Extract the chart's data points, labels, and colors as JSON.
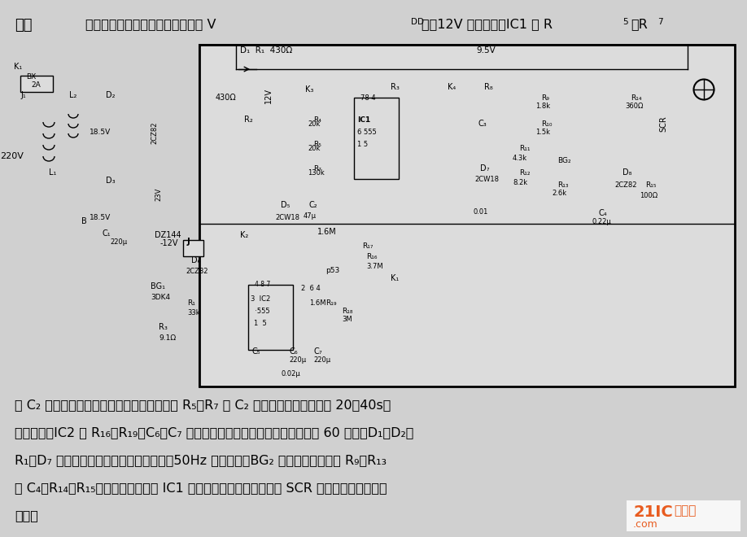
{
  "bg_color": "#e8e8e8",
  "page_bg": "#d4d4d4",
  "title_line": "如图        所示，降压整流电路为控制器提供 V₀₀＝＋12V 工作电压。IC1 和 R₅～R₇",
  "bottom_text_lines": [
    "及 C₂ 构成无稳态多谐振荡器，其振荡周期由 R₅～R₇ 和 C₂ 决定，按图示参数约为 20～40s，",
    "换档可调。IC2 和 R₁₆～R₁₉、C₆、C₇ 等组成开机延时电路，最大延时时间达 60 分钟。D₁、D₂、",
    "R₁、D₇ 组成过零梯形波发生器。梯形波与50Hz 电源同步。BG₂ 为双基极三极管与 R₉～R₁₃",
    "及 C₄、R₁₄、R₁₅构成张弛振荡器受 IC1 输出方波控制，也就控制了 SCR 的导通角，从而改变",
    "风速。"
  ],
  "watermark_text": "21IC电子网",
  "watermark_subtext": ".com"
}
